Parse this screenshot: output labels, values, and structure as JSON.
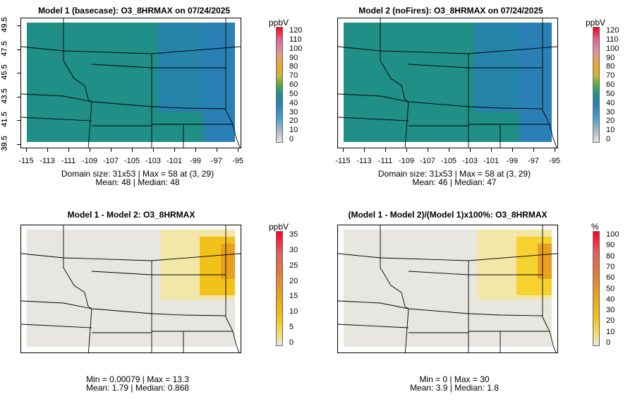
{
  "panels": [
    {
      "title": "Model 1 (basecase): O3_8HRMAX on 07/24/2025",
      "unit": "ppbV",
      "legend_ticks": [
        "120",
        "110",
        "100",
        "90",
        "80",
        "70",
        "60",
        "50",
        "40",
        "30",
        "20",
        "10",
        "0"
      ],
      "stats_line1": "Domain size: 31x53 | Max = 58 at (3, 29)",
      "stats_line2": "Mean: 48 |  Median: 48",
      "x_ticks": [
        "-115",
        "-113",
        "-111",
        "-109",
        "-107",
        "-105",
        "-103",
        "-101",
        "-99",
        "-97",
        "-95"
      ],
      "y_ticks": [
        "49.5",
        "47.5",
        "45.5",
        "43.5",
        "41.5",
        "39.5"
      ],
      "palette": "ozone",
      "colors": {
        "field": "#1f8f87",
        "east": "#2a7fb5"
      }
    },
    {
      "title": "Model 2 (noFires): O3_8HRMAX on 07/24/2025",
      "unit": "ppbV",
      "legend_ticks": [
        "120",
        "110",
        "100",
        "90",
        "80",
        "70",
        "60",
        "50",
        "40",
        "30",
        "20",
        "10",
        "0"
      ],
      "stats_line1": "Domain size: 31x53 | Max = 58 at (3, 29)",
      "stats_line2": "Mean: 46 |  Median: 47",
      "x_ticks": [
        "-115",
        "-113",
        "-111",
        "-109",
        "-107",
        "-105",
        "-103",
        "-101",
        "-99",
        "-97",
        "-95"
      ],
      "y_ticks": [
        "49.5",
        "47.5",
        "45.5",
        "43.5",
        "41.5",
        "39.5"
      ],
      "palette": "ozone",
      "colors": {
        "field": "#1f8f87",
        "east": "#2a7fb5"
      }
    },
    {
      "title": "Model 1 - Model 2: O3_8HRMAX",
      "unit": "ppbV",
      "legend_ticks": [
        "35",
        "30",
        "25",
        "20",
        "15",
        "10",
        "5",
        "0"
      ],
      "stats_line1": "Min = 0.00079 | Max = 13.3",
      "stats_line2": "Mean: 1.79 |  Median: 0.868",
      "x_ticks": [],
      "y_ticks": [],
      "palette": "diff",
      "colors": {
        "field": "#e8e6e0",
        "east": "#f2c21a"
      }
    },
    {
      "title": "(Model 1 - Model 2)/(Model 1)x100%: O3_8HRMAX",
      "unit": "%",
      "legend_ticks": [
        "100",
        "90",
        "80",
        "70",
        "60",
        "50",
        "40",
        "30",
        "20",
        "10",
        "0"
      ],
      "stats_line1": "Min = 0 | Max = 30",
      "stats_line2": "Mean: 3.9 |  Median: 1.8",
      "x_ticks": [],
      "y_ticks": [],
      "palette": "diff",
      "colors": {
        "field": "#e8e6e0",
        "east": "#f5d230"
      }
    }
  ]
}
